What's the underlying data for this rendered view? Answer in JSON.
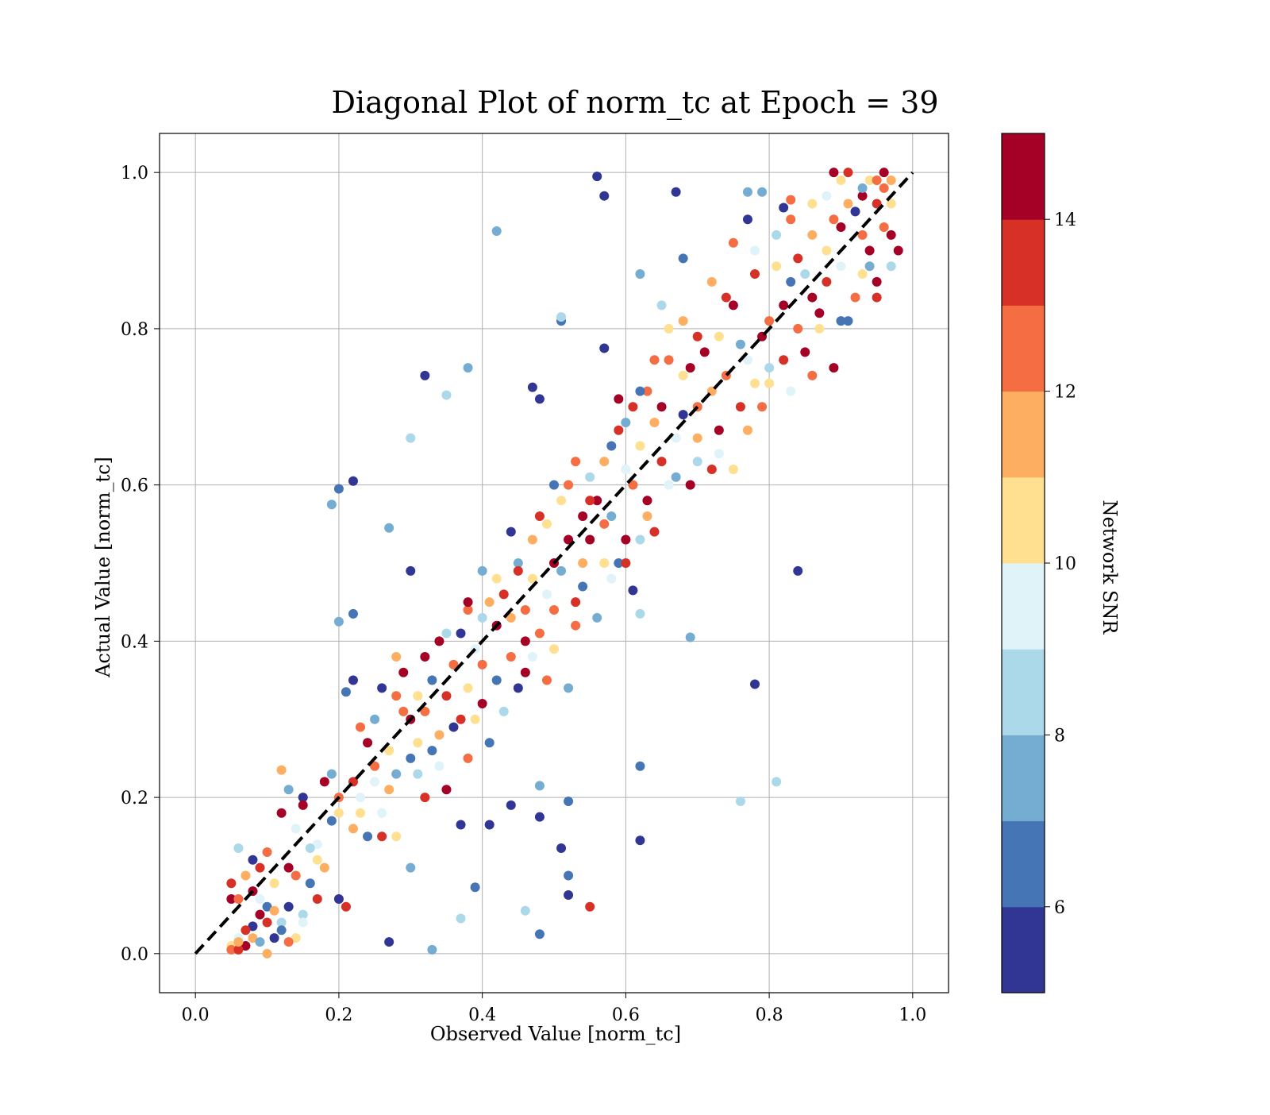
{
  "chart_data": {
    "type": "scatter",
    "title": "Diagonal Plot of norm_tc at Epoch = 39",
    "xlabel": "Observed Value [norm_tc]",
    "ylabel": "Actual Value [norm_tc]",
    "xlim": [
      -0.05,
      1.05
    ],
    "ylim": [
      -0.05,
      1.05
    ],
    "xticks": [
      "0.0",
      "0.2",
      "0.4",
      "0.6",
      "0.8",
      "1.0"
    ],
    "yticks": [
      "0.0",
      "0.2",
      "0.4",
      "0.6",
      "0.8",
      "1.0"
    ],
    "grid": true,
    "reference_line": {
      "from": [
        0,
        0
      ],
      "to": [
        1,
        1
      ],
      "style": "dashed",
      "color": "#000000"
    },
    "colorbar": {
      "label": "Network SNR",
      "range": [
        5,
        15
      ],
      "ticks": [
        "6",
        "8",
        "10",
        "12",
        "14"
      ],
      "colors": [
        "#313695",
        "#4575b4",
        "#74add1",
        "#abd9e9",
        "#e0f3f8",
        "#fee090",
        "#fdae61",
        "#f46d43",
        "#d73027",
        "#a50026"
      ]
    },
    "points": [
      [
        0.05,
        0.01,
        10
      ],
      [
        0.05,
        0.005,
        12
      ],
      [
        0.06,
        0.02,
        9
      ],
      [
        0.07,
        0.01,
        14
      ],
      [
        0.08,
        0.02,
        11
      ],
      [
        0.09,
        0.015,
        7
      ],
      [
        0.06,
        0.005,
        13
      ],
      [
        0.1,
        0.0,
        11
      ],
      [
        0.05,
        0.07,
        14
      ],
      [
        0.05,
        0.09,
        13
      ],
      [
        0.06,
        0.07,
        12
      ],
      [
        0.06,
        0.135,
        8
      ],
      [
        0.07,
        0.1,
        11
      ],
      [
        0.08,
        0.12,
        5
      ],
      [
        0.08,
        0.08,
        14
      ],
      [
        0.09,
        0.07,
        9
      ],
      [
        0.09,
        0.11,
        13
      ],
      [
        0.1,
        0.13,
        12
      ],
      [
        0.1,
        0.06,
        6
      ],
      [
        0.11,
        0.02,
        5
      ],
      [
        0.11,
        0.09,
        10
      ],
      [
        0.12,
        0.04,
        8
      ],
      [
        0.12,
        0.18,
        14
      ],
      [
        0.12,
        0.235,
        11
      ],
      [
        0.13,
        0.21,
        7
      ],
      [
        0.13,
        0.06,
        5
      ],
      [
        0.13,
        0.11,
        14
      ],
      [
        0.14,
        0.16,
        9
      ],
      [
        0.14,
        0.1,
        12
      ],
      [
        0.15,
        0.2,
        5
      ],
      [
        0.15,
        0.19,
        14
      ],
      [
        0.15,
        0.05,
        8
      ],
      [
        0.16,
        0.09,
        6
      ],
      [
        0.17,
        0.07,
        13
      ],
      [
        0.17,
        0.14,
        9
      ],
      [
        0.18,
        0.22,
        14
      ],
      [
        0.18,
        0.11,
        11
      ],
      [
        0.19,
        0.23,
        7
      ],
      [
        0.2,
        0.18,
        10
      ],
      [
        0.2,
        0.07,
        5
      ],
      [
        0.21,
        0.06,
        13
      ],
      [
        0.21,
        0.335,
        6
      ],
      [
        0.22,
        0.22,
        13
      ],
      [
        0.22,
        0.35,
        5
      ],
      [
        0.23,
        0.18,
        10
      ],
      [
        0.23,
        0.29,
        12
      ],
      [
        0.24,
        0.27,
        14
      ],
      [
        0.25,
        0.22,
        9
      ],
      [
        0.25,
        0.3,
        7
      ],
      [
        0.26,
        0.34,
        5
      ],
      [
        0.26,
        0.15,
        13
      ],
      [
        0.27,
        0.21,
        11
      ],
      [
        0.28,
        0.38,
        11
      ],
      [
        0.28,
        0.33,
        12
      ],
      [
        0.29,
        0.36,
        14
      ],
      [
        0.3,
        0.25,
        6
      ],
      [
        0.3,
        0.3,
        14
      ],
      [
        0.31,
        0.23,
        8
      ],
      [
        0.31,
        0.27,
        10
      ],
      [
        0.32,
        0.31,
        12
      ],
      [
        0.32,
        0.38,
        14
      ],
      [
        0.33,
        0.35,
        6
      ],
      [
        0.34,
        0.28,
        11
      ],
      [
        0.34,
        0.4,
        14
      ],
      [
        0.35,
        0.41,
        8
      ],
      [
        0.35,
        0.33,
        13
      ],
      [
        0.36,
        0.37,
        12
      ],
      [
        0.37,
        0.3,
        13
      ],
      [
        0.37,
        0.41,
        5
      ],
      [
        0.38,
        0.44,
        12
      ],
      [
        0.38,
        0.34,
        10
      ],
      [
        0.39,
        0.39,
        9
      ],
      [
        0.4,
        0.43,
        8
      ],
      [
        0.4,
        0.32,
        14
      ],
      [
        0.41,
        0.45,
        11
      ],
      [
        0.42,
        0.35,
        6
      ],
      [
        0.42,
        0.48,
        10
      ],
      [
        0.43,
        0.46,
        13
      ],
      [
        0.44,
        0.38,
        12
      ],
      [
        0.44,
        0.54,
        5
      ],
      [
        0.45,
        0.5,
        7
      ],
      [
        0.46,
        0.44,
        12
      ],
      [
        0.46,
        0.36,
        14
      ],
      [
        0.47,
        0.48,
        10
      ],
      [
        0.48,
        0.41,
        12
      ],
      [
        0.48,
        0.56,
        13
      ],
      [
        0.49,
        0.46,
        9
      ],
      [
        0.5,
        0.5,
        14
      ],
      [
        0.5,
        0.44,
        12
      ],
      [
        0.51,
        0.58,
        10
      ],
      [
        0.51,
        0.49,
        7
      ],
      [
        0.52,
        0.53,
        14
      ],
      [
        0.52,
        0.6,
        12
      ],
      [
        0.53,
        0.45,
        13
      ],
      [
        0.54,
        0.56,
        14
      ],
      [
        0.54,
        0.5,
        11
      ],
      [
        0.55,
        0.61,
        8
      ],
      [
        0.55,
        0.53,
        14
      ],
      [
        0.56,
        0.58,
        14
      ],
      [
        0.57,
        0.55,
        12
      ],
      [
        0.57,
        0.63,
        11
      ],
      [
        0.58,
        0.56,
        7
      ],
      [
        0.59,
        0.67,
        13
      ],
      [
        0.6,
        0.62,
        9
      ],
      [
        0.6,
        0.53,
        14
      ],
      [
        0.61,
        0.6,
        12
      ],
      [
        0.61,
        0.7,
        13
      ],
      [
        0.62,
        0.65,
        10
      ],
      [
        0.63,
        0.72,
        12
      ],
      [
        0.63,
        0.58,
        14
      ],
      [
        0.64,
        0.68,
        11
      ],
      [
        0.65,
        0.63,
        13
      ],
      [
        0.65,
        0.7,
        14
      ],
      [
        0.66,
        0.76,
        12
      ],
      [
        0.67,
        0.66,
        9
      ],
      [
        0.68,
        0.74,
        10
      ],
      [
        0.68,
        0.69,
        5
      ],
      [
        0.69,
        0.75,
        14
      ],
      [
        0.7,
        0.7,
        12
      ],
      [
        0.7,
        0.63,
        8
      ],
      [
        0.71,
        0.77,
        14
      ],
      [
        0.72,
        0.72,
        11
      ],
      [
        0.73,
        0.79,
        10
      ],
      [
        0.73,
        0.67,
        14
      ],
      [
        0.74,
        0.74,
        12
      ],
      [
        0.75,
        0.83,
        14
      ],
      [
        0.76,
        0.78,
        7
      ],
      [
        0.77,
        0.76,
        9
      ],
      [
        0.78,
        0.87,
        13
      ],
      [
        0.78,
        0.73,
        10
      ],
      [
        0.79,
        0.79,
        14
      ],
      [
        0.8,
        0.81,
        12
      ],
      [
        0.8,
        0.75,
        8
      ],
      [
        0.81,
        0.88,
        10
      ],
      [
        0.82,
        0.83,
        14
      ],
      [
        0.83,
        0.86,
        6
      ],
      [
        0.84,
        0.8,
        12
      ],
      [
        0.84,
        0.89,
        13
      ],
      [
        0.85,
        0.87,
        8
      ],
      [
        0.86,
        0.84,
        14
      ],
      [
        0.86,
        0.92,
        11
      ],
      [
        0.87,
        0.82,
        14
      ],
      [
        0.88,
        0.9,
        10
      ],
      [
        0.88,
        0.86,
        13
      ],
      [
        0.89,
        0.94,
        12
      ],
      [
        0.9,
        0.93,
        14
      ],
      [
        0.9,
        0.88,
        9
      ],
      [
        0.91,
        0.96,
        11
      ],
      [
        0.91,
        0.81,
        6
      ],
      [
        0.92,
        0.95,
        8
      ],
      [
        0.93,
        0.97,
        14
      ],
      [
        0.93,
        0.92,
        12
      ],
      [
        0.94,
        0.99,
        10
      ],
      [
        0.94,
        0.9,
        14
      ],
      [
        0.95,
        0.96,
        13
      ],
      [
        0.95,
        0.86,
        14
      ],
      [
        0.96,
        1.0,
        14
      ],
      [
        0.96,
        0.98,
        12
      ],
      [
        0.97,
        0.99,
        11
      ],
      [
        0.97,
        0.92,
        14
      ],
      [
        0.89,
        1.0,
        14
      ],
      [
        0.91,
        1.0,
        13
      ],
      [
        0.98,
        0.9,
        14
      ],
      [
        0.97,
        0.96,
        10
      ],
      [
        0.96,
        0.93,
        12
      ],
      [
        0.92,
        0.95,
        5
      ],
      [
        0.56,
        0.995,
        5
      ],
      [
        0.57,
        0.97,
        5
      ],
      [
        0.67,
        0.975,
        5
      ],
      [
        0.42,
        0.925,
        7
      ],
      [
        0.51,
        0.81,
        6
      ],
      [
        0.51,
        0.815,
        8
      ],
      [
        0.57,
        0.775,
        5
      ],
      [
        0.32,
        0.74,
        5
      ],
      [
        0.38,
        0.75,
        7
      ],
      [
        0.35,
        0.715,
        8
      ],
      [
        0.47,
        0.725,
        5
      ],
      [
        0.48,
        0.71,
        5
      ],
      [
        0.3,
        0.66,
        8
      ],
      [
        0.2,
        0.595,
        6
      ],
      [
        0.22,
        0.605,
        5
      ],
      [
        0.19,
        0.575,
        7
      ],
      [
        0.27,
        0.545,
        7
      ],
      [
        0.3,
        0.49,
        5
      ],
      [
        0.62,
        0.87,
        7
      ],
      [
        0.68,
        0.89,
        6
      ],
      [
        0.65,
        0.83,
        8
      ],
      [
        0.79,
        0.975,
        7
      ],
      [
        0.77,
        0.975,
        7
      ],
      [
        0.77,
        0.94,
        5
      ],
      [
        0.82,
        0.955,
        5
      ],
      [
        0.83,
        0.965,
        12
      ],
      [
        0.84,
        0.49,
        5
      ],
      [
        0.78,
        0.345,
        5
      ],
      [
        0.69,
        0.405,
        7
      ],
      [
        0.62,
        0.435,
        8
      ],
      [
        0.61,
        0.465,
        5
      ],
      [
        0.62,
        0.24,
        6
      ],
      [
        0.62,
        0.145,
        5
      ],
      [
        0.76,
        0.195,
        8
      ],
      [
        0.81,
        0.22,
        8
      ],
      [
        0.52,
        0.195,
        6
      ],
      [
        0.52,
        0.075,
        5
      ],
      [
        0.52,
        0.1,
        6
      ],
      [
        0.55,
        0.06,
        13
      ],
      [
        0.51,
        0.135,
        5
      ],
      [
        0.48,
        0.215,
        7
      ],
      [
        0.48,
        0.175,
        5
      ],
      [
        0.48,
        0.025,
        6
      ],
      [
        0.46,
        0.055,
        8
      ],
      [
        0.44,
        0.19,
        5
      ],
      [
        0.41,
        0.165,
        5
      ],
      [
        0.39,
        0.085,
        6
      ],
      [
        0.37,
        0.045,
        8
      ],
      [
        0.37,
        0.165,
        5
      ],
      [
        0.33,
        0.005,
        7
      ],
      [
        0.27,
        0.015,
        5
      ],
      [
        0.2,
        0.425,
        7
      ],
      [
        0.22,
        0.435,
        6
      ],
      [
        0.26,
        0.18,
        9
      ],
      [
        0.28,
        0.15,
        10
      ],
      [
        0.3,
        0.11,
        7
      ],
      [
        0.15,
        0.04,
        9
      ],
      [
        0.14,
        0.02,
        10
      ],
      [
        0.13,
        0.015,
        12
      ],
      [
        0.12,
        0.03,
        6
      ],
      [
        0.11,
        0.055,
        11
      ],
      [
        0.1,
        0.04,
        13
      ],
      [
        0.09,
        0.05,
        14
      ],
      [
        0.08,
        0.035,
        5
      ],
      [
        0.07,
        0.03,
        13
      ],
      [
        0.06,
        0.015,
        11
      ],
      [
        0.16,
        0.135,
        8
      ],
      [
        0.17,
        0.12,
        10
      ],
      [
        0.19,
        0.17,
        6
      ],
      [
        0.2,
        0.2,
        12
      ],
      [
        0.22,
        0.16,
        11
      ],
      [
        0.23,
        0.2,
        9
      ],
      [
        0.24,
        0.15,
        6
      ],
      [
        0.25,
        0.24,
        12
      ],
      [
        0.27,
        0.26,
        10
      ],
      [
        0.28,
        0.23,
        7
      ],
      [
        0.29,
        0.31,
        12
      ],
      [
        0.31,
        0.33,
        10
      ],
      [
        0.32,
        0.2,
        13
      ],
      [
        0.33,
        0.26,
        6
      ],
      [
        0.34,
        0.24,
        9
      ],
      [
        0.35,
        0.21,
        14
      ],
      [
        0.36,
        0.29,
        5
      ],
      [
        0.38,
        0.25,
        12
      ],
      [
        0.39,
        0.3,
        10
      ],
      [
        0.4,
        0.37,
        12
      ],
      [
        0.41,
        0.27,
        6
      ],
      [
        0.43,
        0.31,
        8
      ],
      [
        0.44,
        0.43,
        11
      ],
      [
        0.45,
        0.34,
        5
      ],
      [
        0.46,
        0.4,
        14
      ],
      [
        0.47,
        0.38,
        9
      ],
      [
        0.49,
        0.35,
        12
      ],
      [
        0.5,
        0.39,
        10
      ],
      [
        0.52,
        0.34,
        7
      ],
      [
        0.53,
        0.42,
        12
      ],
      [
        0.54,
        0.47,
        6
      ],
      [
        0.56,
        0.43,
        7
      ],
      [
        0.57,
        0.5,
        10
      ],
      [
        0.58,
        0.48,
        9
      ],
      [
        0.59,
        0.5,
        6
      ],
      [
        0.6,
        0.5,
        13
      ],
      [
        0.62,
        0.53,
        8
      ],
      [
        0.63,
        0.56,
        11
      ],
      [
        0.64,
        0.54,
        13
      ],
      [
        0.66,
        0.6,
        9
      ],
      [
        0.67,
        0.61,
        7
      ],
      [
        0.69,
        0.6,
        14
      ],
      [
        0.7,
        0.66,
        11
      ],
      [
        0.72,
        0.62,
        13
      ],
      [
        0.73,
        0.64,
        9
      ],
      [
        0.75,
        0.62,
        10
      ],
      [
        0.76,
        0.7,
        13
      ],
      [
        0.77,
        0.67,
        11
      ],
      [
        0.79,
        0.7,
        12
      ],
      [
        0.8,
        0.73,
        10
      ],
      [
        0.82,
        0.76,
        13
      ],
      [
        0.83,
        0.72,
        9
      ],
      [
        0.85,
        0.77,
        14
      ],
      [
        0.86,
        0.74,
        12
      ],
      [
        0.87,
        0.8,
        10
      ],
      [
        0.89,
        0.75,
        14
      ],
      [
        0.9,
        0.81,
        6
      ],
      [
        0.92,
        0.84,
        12
      ],
      [
        0.93,
        0.87,
        10
      ],
      [
        0.94,
        0.88,
        7
      ],
      [
        0.95,
        0.84,
        13
      ],
      [
        0.97,
        0.88,
        8
      ],
      [
        0.38,
        0.45,
        14
      ],
      [
        0.4,
        0.49,
        7
      ],
      [
        0.42,
        0.42,
        14
      ],
      [
        0.45,
        0.49,
        13
      ],
      [
        0.47,
        0.53,
        11
      ],
      [
        0.49,
        0.55,
        10
      ],
      [
        0.5,
        0.6,
        6
      ],
      [
        0.53,
        0.63,
        12
      ],
      [
        0.55,
        0.58,
        13
      ],
      [
        0.58,
        0.65,
        6
      ],
      [
        0.59,
        0.71,
        14
      ],
      [
        0.6,
        0.68,
        7
      ],
      [
        0.62,
        0.72,
        6
      ],
      [
        0.64,
        0.76,
        12
      ],
      [
        0.66,
        0.8,
        10
      ],
      [
        0.68,
        0.81,
        11
      ],
      [
        0.7,
        0.79,
        13
      ],
      [
        0.72,
        0.86,
        11
      ],
      [
        0.74,
        0.84,
        13
      ],
      [
        0.75,
        0.91,
        12
      ],
      [
        0.78,
        0.9,
        9
      ],
      [
        0.81,
        0.92,
        8
      ],
      [
        0.83,
        0.94,
        12
      ],
      [
        0.86,
        0.96,
        10
      ],
      [
        0.88,
        0.97,
        9
      ],
      [
        0.9,
        0.99,
        10
      ],
      [
        0.93,
        0.98,
        7
      ],
      [
        0.95,
        0.99,
        12
      ]
    ]
  }
}
